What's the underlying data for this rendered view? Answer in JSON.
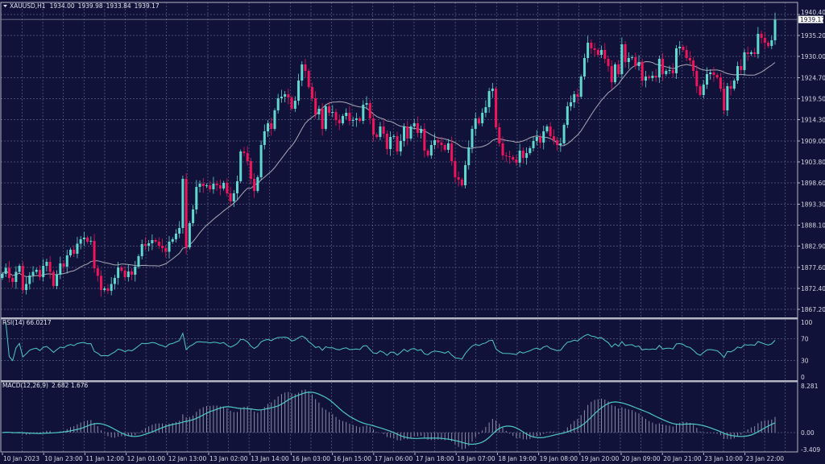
{
  "header": {
    "symbol": "XAUUSD,H1",
    "open": "1934.00",
    "high": "1939.98",
    "low": "1933.84",
    "close": "1939.17"
  },
  "current_price_label": "1939.17",
  "colors": {
    "background": "#10123a",
    "bull": "#5fd8d0",
    "bear": "#f0145a",
    "grid": "#5a5e84",
    "ma": "#a8a8b4",
    "rsi": "#4fc9c4",
    "macd_hist": "#8c8ca8",
    "macd_signal": "#4fc9c4",
    "frame": "#b4b6c4"
  },
  "chart_data": [
    {
      "type": "candlestick",
      "title": "XAUUSD,H1",
      "ylim": [
        1867.2,
        1940.4
      ],
      "y_ticks": [
        "1940.40",
        "1935.20",
        "1930.00",
        "1924.70",
        "1919.50",
        "1914.30",
        "1909.00",
        "1903.80",
        "1898.60",
        "1893.30",
        "1888.10",
        "1882.90",
        "1877.60",
        "1872.40",
        "1867.20"
      ],
      "x_ticks": [
        "10 Jan 2023",
        "10 Jan 23:00",
        "11 Jan 12:00",
        "12 Jan 01:00",
        "12 Jan 13:00",
        "13 Jan 02:00",
        "13 Jan 14:00",
        "16 Jan 03:00",
        "16 Jan 15:00",
        "17 Jan 06:00",
        "17 Jan 18:00",
        "18 Jan 07:00",
        "18 Jan 19:00",
        "19 Jan 08:00",
        "19 Jan 20:00",
        "20 Jan 09:00",
        "20 Jan 21:00",
        "23 Jan 10:00",
        "23 Jan 22:00"
      ],
      "grid": true,
      "overlay": "moving average",
      "first_open": 1875.0,
      "close": [
        1876.0,
        1877.5,
        1875.0,
        1874.0,
        1876.5,
        1878.0,
        1872.0,
        1873.5,
        1875.6,
        1876.5,
        1877.0,
        1875.2,
        1878.0,
        1879.0,
        1876.5,
        1873.0,
        1875.8,
        1878.6,
        1877.8,
        1880.6,
        1882.0,
        1881.0,
        1883.5,
        1884.6,
        1885.0,
        1884.0,
        1884.2,
        1877.4,
        1875.5,
        1872.0,
        1872.4,
        1871.8,
        1873.5,
        1875.0,
        1877.6,
        1876.8,
        1875.2,
        1876.6,
        1875.8,
        1877.8,
        1880.4,
        1883.4,
        1883.0,
        1883.6,
        1884.4,
        1884.0,
        1883.0,
        1882.4,
        1881.5,
        1884.0,
        1884.6,
        1886.0,
        1887.4,
        1899.6,
        1882.6,
        1888.6,
        1892.0,
        1897.6,
        1898.4,
        1897.8,
        1898.0,
        1897.0,
        1898.4,
        1898.0,
        1897.2,
        1898.6,
        1896.0,
        1894.0,
        1896.0,
        1899.0,
        1906.4,
        1906.0,
        1904.0,
        1899.6,
        1896.6,
        1900.0,
        1908.0,
        1911.4,
        1913.4,
        1912.0,
        1916.6,
        1919.6,
        1920.0,
        1920.6,
        1919.8,
        1917.0,
        1919.0,
        1924.0,
        1928.0,
        1926.4,
        1922.4,
        1919.6,
        1915.6,
        1917.0,
        1912.0,
        1917.6,
        1916.0,
        1916.2,
        1914.2,
        1913.4,
        1915.2,
        1916.0,
        1914.0,
        1914.2,
        1914.6,
        1914.0,
        1918.0,
        1918.4,
        1914.6,
        1910.6,
        1910.0,
        1912.6,
        1910.8,
        1907.0,
        1910.0,
        1910.2,
        1906.4,
        1909.0,
        1912.6,
        1909.6,
        1912.6,
        1913.4,
        1911.0,
        1912.0,
        1906.6,
        1905.4,
        1908.0,
        1909.2,
        1908.6,
        1908.0,
        1906.8,
        1908.4,
        1904.0,
        1900.0,
        1899.4,
        1898.0,
        1903.0,
        1907.4,
        1912.0,
        1914.6,
        1913.4,
        1916.0,
        1917.4,
        1921.4,
        1922.0,
        1912.4,
        1908.4,
        1905.4,
        1905.2,
        1905.0,
        1904.4,
        1903.6,
        1906.6,
        1904.8,
        1906.0,
        1907.2,
        1909.0,
        1910.0,
        1908.6,
        1911.4,
        1912.6,
        1910.2,
        1909.2,
        1908.0,
        1908.4,
        1913.0,
        1917.6,
        1918.6,
        1920.6,
        1920.0,
        1925.0,
        1929.6,
        1933.4,
        1932.0,
        1931.6,
        1930.4,
        1931.6,
        1929.4,
        1927.6,
        1923.6,
        1928.0,
        1925.6,
        1933.0,
        1928.6,
        1929.6,
        1929.8,
        1927.6,
        1928.6,
        1924.0,
        1925.0,
        1924.6,
        1925.2,
        1924.8,
        1929.4,
        1925.6,
        1926.4,
        1926.6,
        1925.8,
        1932.0,
        1932.4,
        1931.6,
        1929.6,
        1929.0,
        1926.4,
        1922.6,
        1920.4,
        1923.0,
        1925.6,
        1926.0,
        1925.4,
        1924.8,
        1922.0,
        1916.6,
        1922.6,
        1922.0,
        1924.0,
        1927.6,
        1926.6,
        1931.0,
        1930.6,
        1931.0,
        1930.6,
        1935.6,
        1934.6,
        1933.4,
        1932.6,
        1934.0,
        1939.17
      ]
    },
    {
      "type": "line",
      "title": "RSI(14)",
      "value_label": "66.0217",
      "ylim": [
        0,
        100
      ],
      "y_ticks": [
        "100",
        "70",
        "30",
        "0"
      ],
      "levels": [
        70,
        30
      ]
    },
    {
      "type": "bar+line",
      "title": "MACD(12,26,9)",
      "value_label": "2.682 1.676",
      "ylim": [
        -3.409,
        8.281
      ],
      "y_ticks": [
        "8.281",
        "0.00",
        "-3.409"
      ]
    }
  ]
}
